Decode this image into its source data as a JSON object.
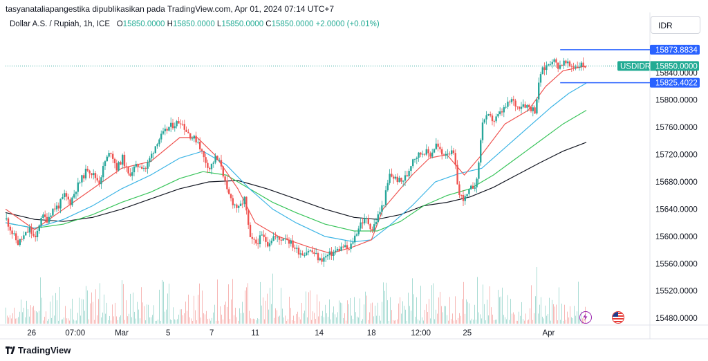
{
  "header": {
    "publisher_line": "tasyanataliapangestika dipublikasikan pada TradingView.com, Apr 01, 2024 07:14 UTC+7",
    "symbol": "Dollar A.S. / Rupiah, 1h, ICE",
    "ohlc": {
      "o_label": "O",
      "o_value": "15850.0000",
      "h_label": "H",
      "h_value": "15850.0000",
      "l_label": "L",
      "l_value": "15850.0000",
      "c_label": "C",
      "c_value": "15850.0000",
      "change": "+2.0000 (+0.01%)"
    },
    "currency": "IDR"
  },
  "brand": {
    "name": "TradingView"
  },
  "colors": {
    "up": "#26a69a",
    "down": "#ef5350",
    "ema_fast": "#ef5350",
    "ema_mid": "#3bb4e5",
    "ema_slow": "#38c45a",
    "ema_long": "#131722",
    "blue_line": "#2962ff",
    "tag_green": "#22ab94"
  },
  "chart_data": {
    "type": "candlestick",
    "symbol": "USDIDR",
    "interval": "1h",
    "y_ticks": [
      "15840.0000",
      "15800.0000",
      "15760.0000",
      "15720.0000",
      "15680.0000",
      "15640.0000",
      "15600.0000",
      "15560.0000",
      "15520.0000",
      "15480.0000"
    ],
    "ylim": [
      15470,
      15890
    ],
    "x_ticks": [
      {
        "label": "26",
        "t": 0.045
      },
      {
        "label": "07:00",
        "t": 0.12
      },
      {
        "label": "Mar",
        "t": 0.2
      },
      {
        "label": "5",
        "t": 0.28
      },
      {
        "label": "7",
        "t": 0.355
      },
      {
        "label": "11",
        "t": 0.43
      },
      {
        "label": "14",
        "t": 0.54
      },
      {
        "label": "18",
        "t": 0.63
      },
      {
        "label": "12:00",
        "t": 0.715
      },
      {
        "label": "25",
        "t": 0.795
      },
      {
        "label": "Apr",
        "t": 0.935
      }
    ],
    "price_tags": [
      {
        "label": "15873.8834",
        "value": 15873.88,
        "type": "blue"
      },
      {
        "label": "USDIDR",
        "value_label": "15850.0000",
        "value": 15850,
        "type": "last"
      },
      {
        "label": "15825.4022",
        "value": 15825.4,
        "type": "blue"
      }
    ],
    "close_path": [
      [
        0.0,
        15625
      ],
      [
        0.01,
        15605
      ],
      [
        0.02,
        15590
      ],
      [
        0.03,
        15600
      ],
      [
        0.04,
        15610
      ],
      [
        0.05,
        15595
      ],
      [
        0.06,
        15630
      ],
      [
        0.07,
        15625
      ],
      [
        0.08,
        15640
      ],
      [
        0.09,
        15645
      ],
      [
        0.1,
        15660
      ],
      [
        0.11,
        15650
      ],
      [
        0.12,
        15670
      ],
      [
        0.13,
        15685
      ],
      [
        0.14,
        15700
      ],
      [
        0.15,
        15690
      ],
      [
        0.16,
        15680
      ],
      [
        0.17,
        15710
      ],
      [
        0.18,
        15725
      ],
      [
        0.19,
        15700
      ],
      [
        0.2,
        15715
      ],
      [
        0.21,
        15690
      ],
      [
        0.22,
        15700
      ],
      [
        0.23,
        15705
      ],
      [
        0.24,
        15700
      ],
      [
        0.25,
        15720
      ],
      [
        0.26,
        15740
      ],
      [
        0.27,
        15750
      ],
      [
        0.28,
        15760
      ],
      [
        0.29,
        15765
      ],
      [
        0.3,
        15770
      ],
      [
        0.31,
        15755
      ],
      [
        0.32,
        15745
      ],
      [
        0.33,
        15740
      ],
      [
        0.34,
        15715
      ],
      [
        0.35,
        15700
      ],
      [
        0.36,
        15715
      ],
      [
        0.37,
        15705
      ],
      [
        0.38,
        15665
      ],
      [
        0.39,
        15650
      ],
      [
        0.4,
        15640
      ],
      [
        0.41,
        15655
      ],
      [
        0.42,
        15595
      ],
      [
        0.43,
        15590
      ],
      [
        0.44,
        15600
      ],
      [
        0.45,
        15590
      ],
      [
        0.46,
        15600
      ],
      [
        0.47,
        15595
      ],
      [
        0.48,
        15600
      ],
      [
        0.49,
        15590
      ],
      [
        0.5,
        15580
      ],
      [
        0.51,
        15575
      ],
      [
        0.52,
        15580
      ],
      [
        0.53,
        15575
      ],
      [
        0.54,
        15565
      ],
      [
        0.55,
        15570
      ],
      [
        0.56,
        15575
      ],
      [
        0.57,
        15580
      ],
      [
        0.58,
        15585
      ],
      [
        0.59,
        15580
      ],
      [
        0.6,
        15600
      ],
      [
        0.61,
        15620
      ],
      [
        0.62,
        15625
      ],
      [
        0.63,
        15610
      ],
      [
        0.64,
        15630
      ],
      [
        0.65,
        15650
      ],
      [
        0.66,
        15690
      ],
      [
        0.67,
        15685
      ],
      [
        0.68,
        15680
      ],
      [
        0.69,
        15690
      ],
      [
        0.7,
        15715
      ],
      [
        0.71,
        15720
      ],
      [
        0.72,
        15725
      ],
      [
        0.73,
        15720
      ],
      [
        0.74,
        15735
      ],
      [
        0.75,
        15720
      ],
      [
        0.76,
        15725
      ],
      [
        0.77,
        15720
      ],
      [
        0.78,
        15660
      ],
      [
        0.79,
        15655
      ],
      [
        0.8,
        15670
      ],
      [
        0.81,
        15680
      ],
      [
        0.82,
        15770
      ],
      [
        0.83,
        15775
      ],
      [
        0.84,
        15770
      ],
      [
        0.85,
        15780
      ],
      [
        0.86,
        15790
      ],
      [
        0.87,
        15800
      ],
      [
        0.88,
        15790
      ],
      [
        0.89,
        15795
      ],
      [
        0.9,
        15790
      ],
      [
        0.91,
        15785
      ],
      [
        0.92,
        15840
      ],
      [
        0.93,
        15850
      ],
      [
        0.94,
        15860
      ],
      [
        0.95,
        15850
      ],
      [
        0.96,
        15855
      ],
      [
        0.97,
        15850
      ],
      [
        0.98,
        15850
      ],
      [
        0.99,
        15852
      ],
      [
        1.0,
        15850
      ]
    ],
    "ema_fast": [
      [
        0.0,
        15640
      ],
      [
        0.05,
        15610
      ],
      [
        0.1,
        15640
      ],
      [
        0.15,
        15670
      ],
      [
        0.2,
        15700
      ],
      [
        0.25,
        15710
      ],
      [
        0.3,
        15745
      ],
      [
        0.33,
        15745
      ],
      [
        0.36,
        15720
      ],
      [
        0.4,
        15670
      ],
      [
        0.43,
        15620
      ],
      [
        0.47,
        15600
      ],
      [
        0.52,
        15585
      ],
      [
        0.56,
        15575
      ],
      [
        0.6,
        15585
      ],
      [
        0.63,
        15595
      ],
      [
        0.65,
        15640
      ],
      [
        0.7,
        15690
      ],
      [
        0.73,
        15715
      ],
      [
        0.76,
        15720
      ],
      [
        0.79,
        15690
      ],
      [
        0.82,
        15720
      ],
      [
        0.86,
        15765
      ],
      [
        0.9,
        15785
      ],
      [
        0.93,
        15820
      ],
      [
        0.96,
        15843
      ],
      [
        1.0,
        15850
      ]
    ],
    "ema_mid": [
      [
        0.0,
        15620
      ],
      [
        0.05,
        15612
      ],
      [
        0.1,
        15625
      ],
      [
        0.15,
        15645
      ],
      [
        0.2,
        15670
      ],
      [
        0.25,
        15690
      ],
      [
        0.3,
        15715
      ],
      [
        0.34,
        15725
      ],
      [
        0.38,
        15705
      ],
      [
        0.42,
        15670
      ],
      [
        0.46,
        15640
      ],
      [
        0.5,
        15620
      ],
      [
        0.55,
        15600
      ],
      [
        0.6,
        15592
      ],
      [
        0.63,
        15595
      ],
      [
        0.66,
        15615
      ],
      [
        0.7,
        15645
      ],
      [
        0.74,
        15680
      ],
      [
        0.78,
        15692
      ],
      [
        0.82,
        15700
      ],
      [
        0.86,
        15730
      ],
      [
        0.9,
        15760
      ],
      [
        0.94,
        15790
      ],
      [
        0.97,
        15810
      ],
      [
        1.0,
        15825
      ]
    ],
    "ema_slow": [
      [
        0.0,
        15620
      ],
      [
        0.05,
        15612
      ],
      [
        0.1,
        15618
      ],
      [
        0.15,
        15632
      ],
      [
        0.2,
        15650
      ],
      [
        0.25,
        15665
      ],
      [
        0.3,
        15685
      ],
      [
        0.34,
        15695
      ],
      [
        0.38,
        15690
      ],
      [
        0.42,
        15670
      ],
      [
        0.46,
        15650
      ],
      [
        0.5,
        15635
      ],
      [
        0.55,
        15618
      ],
      [
        0.6,
        15608
      ],
      [
        0.64,
        15608
      ],
      [
        0.68,
        15622
      ],
      [
        0.72,
        15645
      ],
      [
        0.76,
        15660
      ],
      [
        0.8,
        15670
      ],
      [
        0.84,
        15690
      ],
      [
        0.88,
        15715
      ],
      [
        0.92,
        15740
      ],
      [
        0.96,
        15765
      ],
      [
        1.0,
        15785
      ]
    ],
    "ema_long": [
      [
        0.0,
        15635
      ],
      [
        0.05,
        15625
      ],
      [
        0.1,
        15622
      ],
      [
        0.15,
        15628
      ],
      [
        0.2,
        15640
      ],
      [
        0.25,
        15655
      ],
      [
        0.3,
        15670
      ],
      [
        0.35,
        15680
      ],
      [
        0.4,
        15682
      ],
      [
        0.45,
        15670
      ],
      [
        0.5,
        15655
      ],
      [
        0.55,
        15640
      ],
      [
        0.6,
        15628
      ],
      [
        0.64,
        15625
      ],
      [
        0.68,
        15632
      ],
      [
        0.72,
        15645
      ],
      [
        0.76,
        15650
      ],
      [
        0.8,
        15658
      ],
      [
        0.84,
        15672
      ],
      [
        0.88,
        15690
      ],
      [
        0.92,
        15708
      ],
      [
        0.96,
        15725
      ],
      [
        1.0,
        15738
      ]
    ]
  }
}
